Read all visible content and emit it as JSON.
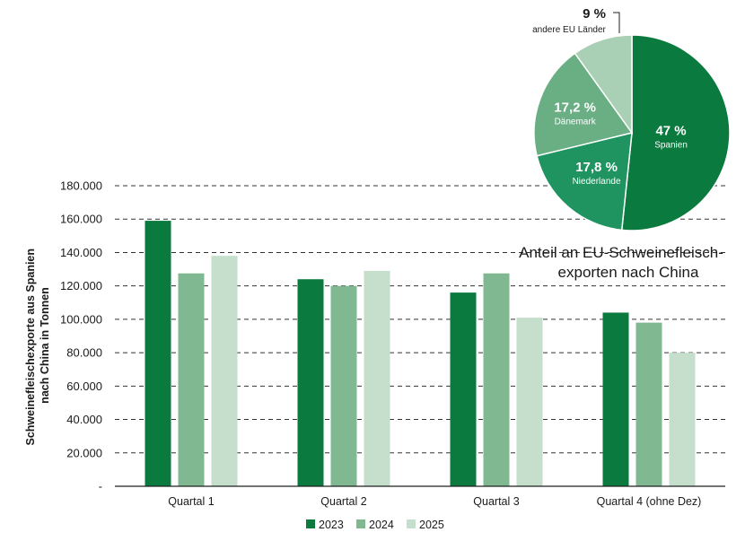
{
  "chart_data": [
    {
      "type": "bar",
      "ylabel_line1": "Schweinefleischexporte aus Spanien",
      "ylabel_line2": "nach China in Tonnen",
      "categories": [
        "Quartal 1",
        "Quartal 2",
        "Quartal 3",
        "Quartal 4 (ohne Dez)"
      ],
      "series": [
        {
          "name": "2023",
          "color": "#0b7a3e",
          "values": [
            159000,
            124000,
            116000,
            104000
          ]
        },
        {
          "name": "2024",
          "color": "#7fb891",
          "values": [
            127500,
            120000,
            127500,
            98000
          ]
        },
        {
          "name": "2025",
          "color": "#c5dfcc",
          "values": [
            138000,
            129000,
            101000,
            80000
          ]
        }
      ],
      "ylim": [
        0,
        180000
      ],
      "yticks": [
        0,
        20000,
        40000,
        60000,
        80000,
        100000,
        120000,
        140000,
        160000,
        180000
      ],
      "ytick_labels": [
        "-",
        "20.000",
        "40.000",
        "60.000",
        "80.000",
        "100.000",
        "120.000",
        "140.000",
        "160.000",
        "180.000"
      ],
      "grid": "dashed horizontal",
      "legend": "bottom"
    },
    {
      "type": "pie",
      "title_line1": "Anteil an EU-Schweinefleisch-",
      "title_line2": "exporten nach China",
      "slices": [
        {
          "label": "Spanien",
          "value": 47,
          "pct_label": "47 %",
          "color": "#0b7a3e"
        },
        {
          "label": "Niederlande",
          "value": 17.8,
          "pct_label": "17,8 %",
          "color": "#1f9460"
        },
        {
          "label": "Dänemark",
          "value": 17.2,
          "pct_label": "17,2 %",
          "color": "#6aaf84"
        },
        {
          "label": "andere EU Länder",
          "value": 9,
          "pct_label": "9 %",
          "color": "#a9d0b4"
        }
      ]
    }
  ]
}
